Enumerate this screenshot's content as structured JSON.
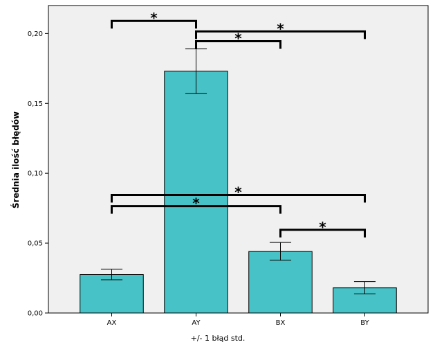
{
  "chart_data": {
    "type": "bar",
    "categories": [
      "AX",
      "AY",
      "BX",
      "BY"
    ],
    "values": [
      0.0275,
      0.173,
      0.044,
      0.018
    ],
    "error_bars": {
      "lower": [
        0.0238,
        0.157,
        0.0377,
        0.0137
      ],
      "upper": [
        0.0313,
        0.189,
        0.0505,
        0.0225
      ]
    },
    "title": "",
    "xlabel": "",
    "ylabel": "Średnia ilość błędów",
    "note": "+/- 1 błąd std.",
    "ylim": [
      0,
      0.22
    ],
    "yticks": [
      0,
      0.05,
      0.1,
      0.15,
      0.2
    ],
    "ytick_labels": [
      "0,00",
      "0,05",
      "0,10",
      "0,15",
      "0,20"
    ],
    "bar_color": "#47c2c6",
    "plot_background": "#f0f0f0",
    "grid": false,
    "significance": [
      {
        "from": "AX",
        "to": "AY",
        "level": 0.209,
        "label": "*"
      },
      {
        "from": "AY",
        "to": "BY",
        "level": 0.2015,
        "label": "*"
      },
      {
        "from": "AY",
        "to": "BX",
        "level": 0.1945,
        "label": "*"
      },
      {
        "from": "AX",
        "to": "BY",
        "level": 0.0845,
        "label": "*"
      },
      {
        "from": "AX",
        "to": "BX",
        "level": 0.0765,
        "label": "*"
      },
      {
        "from": "BX",
        "to": "BY",
        "level": 0.0595,
        "label": "*"
      }
    ]
  }
}
